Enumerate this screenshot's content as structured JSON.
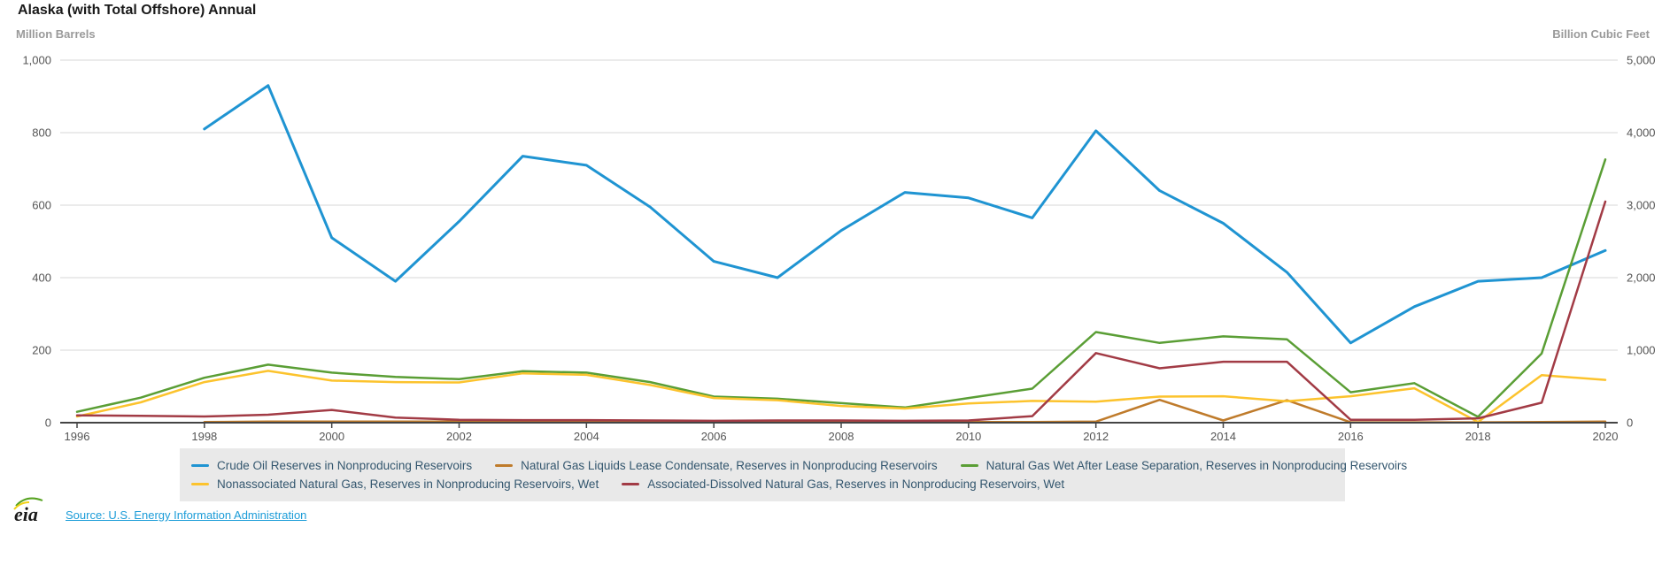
{
  "header": {
    "title": "Alaska (with Total Offshore) Annual"
  },
  "chart_data": {
    "type": "line",
    "title": "Alaska (with Total Offshore) Annual",
    "x_min": 1996,
    "x_max": 2020,
    "x_ticks": [
      1996,
      1998,
      2000,
      2002,
      2004,
      2006,
      2008,
      2010,
      2012,
      2014,
      2016,
      2018,
      2020
    ],
    "axes": {
      "left": {
        "label": "Million Barrels",
        "min": 0,
        "max": 1000,
        "tick_values": [
          1000,
          800,
          600,
          400,
          200,
          0
        ],
        "tick_labels": [
          "1,000",
          "800",
          "600",
          "400",
          "200",
          "0"
        ]
      },
      "right": {
        "label": "Billion Cubic Feet",
        "min": 0,
        "max": 5000,
        "tick_values": [
          5000,
          4000,
          3000,
          2000,
          1000,
          0
        ],
        "tick_labels": [
          "5,000",
          "4,000",
          "3,000",
          "2,000",
          "1,000",
          "0"
        ]
      }
    },
    "grid": true,
    "legend_position": "bottom",
    "legend_rows": [
      [
        0,
        1,
        2
      ],
      [
        3,
        4
      ]
    ],
    "series": [
      {
        "name": "Crude Oil Reserves in Nonproducing Reservoirs",
        "axis": "left",
        "units": "Million Barrels",
        "color": "#1f94d2",
        "width": 3,
        "x_start": 1998,
        "values": [
          810,
          930,
          510,
          390,
          555,
          735,
          710,
          595,
          445,
          400,
          530,
          635,
          620,
          565,
          805,
          640,
          550,
          415,
          220,
          320,
          390,
          400,
          475
        ]
      },
      {
        "name": "Natural Gas Liquids Lease Condensate, Reserves in Nonproducing Reservoirs",
        "axis": "left",
        "units": "Million Barrels",
        "color": "#bf7b2b",
        "width": 2.5,
        "x_start": 1998,
        "values": [
          2,
          3,
          3,
          3,
          3,
          4,
          4,
          3,
          3,
          3,
          2,
          2,
          2,
          2,
          3,
          63,
          6,
          62,
          1,
          1,
          1,
          2,
          3
        ]
      },
      {
        "name": "Natural Gas Wet After Lease Separation, Reserves in Nonproducing Reservoirs",
        "axis": "right",
        "units": "Billion Cubic Feet",
        "color": "#5a9e35",
        "width": 2.5,
        "x_start": 1996,
        "values": [
          150,
          345,
          620,
          800,
          690,
          630,
          600,
          710,
          690,
          560,
          360,
          330,
          270,
          210,
          340,
          470,
          1250,
          1100,
          1190,
          1150,
          420,
          545,
          80,
          955,
          3630
        ]
      },
      {
        "name": "Nonassociated Natural Gas, Reserves in Nonproducing Reservoirs, Wet",
        "axis": "right",
        "units": "Billion Cubic Feet",
        "color": "#fcc32d",
        "width": 2.5,
        "x_start": 1996,
        "values": [
          85,
          280,
          560,
          715,
          580,
          560,
          555,
          680,
          660,
          520,
          340,
          310,
          230,
          195,
          265,
          300,
          290,
          360,
          365,
          295,
          365,
          475,
          10,
          655,
          590
        ]
      },
      {
        "name": "Associated-Dissolved Natural Gas, Reserves in Nonproducing Reservoirs, Wet",
        "axis": "right",
        "units": "Billion Cubic Feet",
        "color": "#a23b45",
        "width": 2.5,
        "x_start": 1996,
        "values": [
          100,
          95,
          85,
          110,
          175,
          70,
          40,
          35,
          35,
          30,
          25,
          30,
          30,
          25,
          30,
          90,
          960,
          750,
          840,
          840,
          40,
          40,
          60,
          275,
          3050
        ]
      }
    ],
    "colors": {
      "grid": "#d7d7d7",
      "baseline": "#444444",
      "tick_text": "#555555",
      "legend_bg": "#e9e9e9",
      "legend_text": "#33566e"
    }
  },
  "footer": {
    "logo_text": "eia",
    "source_text": "Source: U.S. Energy Information Administration"
  }
}
